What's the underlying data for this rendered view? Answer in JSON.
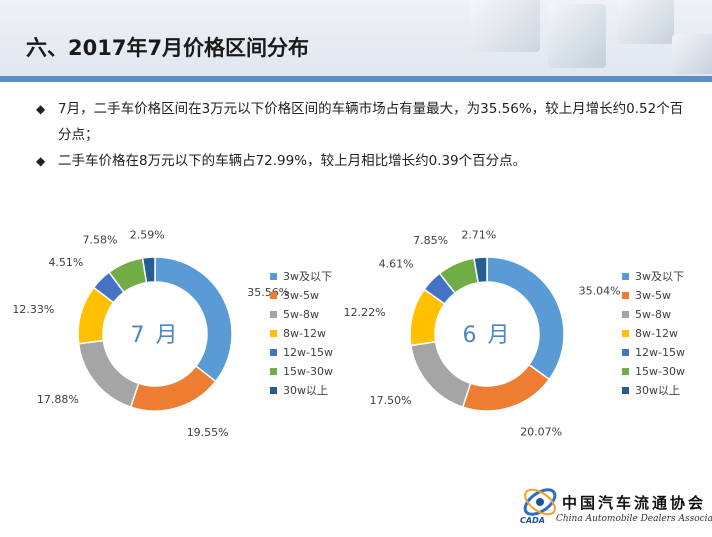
{
  "header": {
    "title": "六、2017年7月价格区间分布"
  },
  "bullets": [
    "7月，二手车价格区间在3万元以下价格区间的车辆市场占有量最大，为35.56%，较上月增长约0.52个百分点；",
    "二手车价格在8万元以下的车辆占72.99%，较上月相比增长约0.39个百分点。"
  ],
  "bullet_mark": "◆",
  "colors": {
    "accent": "#5b8fc8",
    "segments": [
      "#5b9bd5",
      "#ed7d31",
      "#a5a5a5",
      "#ffc000",
      "#4472c4",
      "#70ad47",
      "#255e91"
    ]
  },
  "chart_data": [
    {
      "type": "pie",
      "variant": "donut",
      "center_label": "7 月",
      "categories": [
        "3w及以下",
        "3w-5w",
        "5w-8w",
        "8w-12w",
        "12w-15w",
        "15w-30w",
        "30w以上"
      ],
      "values": [
        35.56,
        19.55,
        17.88,
        12.33,
        4.51,
        7.58,
        2.59
      ],
      "data_labels": [
        "35.56%",
        "19.55%",
        "17.88%",
        "12.33%",
        "4.51%",
        "7.58%",
        "2.59%"
      ],
      "legend": "right"
    },
    {
      "type": "pie",
      "variant": "donut",
      "center_label": "6 月",
      "categories": [
        "3w及以下",
        "3w-5w",
        "5w-8w",
        "8w-12w",
        "12w-15w",
        "15w-30w",
        "30w以上"
      ],
      "values": [
        35.04,
        20.07,
        17.5,
        12.22,
        4.61,
        7.85,
        2.71
      ],
      "data_labels": [
        "35.04%",
        "20.07%",
        "17.50%",
        "12.22%",
        "4.61%",
        "7.85%",
        "2.71%"
      ],
      "legend": "right"
    }
  ],
  "logo": {
    "name_cn": "中国汽车流通协会",
    "name_en": "China Automobile Dealers Association",
    "abbr": "CADA"
  }
}
